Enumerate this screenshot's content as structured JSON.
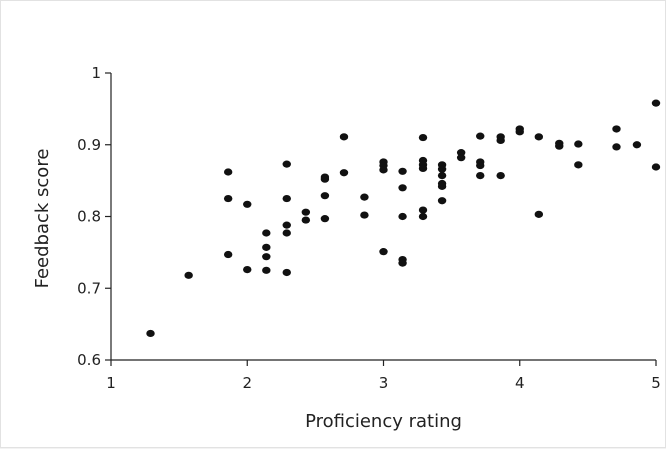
{
  "chart_data": {
    "type": "scatter",
    "title": "",
    "xlabel": "Proficiency rating",
    "ylabel": "Feedback score",
    "xlim": [
      1,
      5
    ],
    "ylim": [
      0.6,
      1.0
    ],
    "x_ticks": [
      1,
      2,
      3,
      4,
      5
    ],
    "y_ticks": [
      0.6,
      0.7,
      0.8,
      0.9,
      1.0
    ],
    "x_tick_labels": [
      "1",
      "2",
      "3",
      "4",
      "5"
    ],
    "y_tick_labels": [
      "0.6",
      "0.7",
      "0.8",
      "0.9",
      "1"
    ],
    "grid": false,
    "marker_color": "#111111",
    "series": [
      {
        "name": "",
        "points": [
          [
            1.29,
            0.637
          ],
          [
            1.57,
            0.718
          ],
          [
            1.86,
            0.862
          ],
          [
            1.86,
            0.825
          ],
          [
            1.86,
            0.747
          ],
          [
            2.0,
            0.817
          ],
          [
            2.0,
            0.726
          ],
          [
            2.14,
            0.777
          ],
          [
            2.14,
            0.757
          ],
          [
            2.14,
            0.744
          ],
          [
            2.14,
            0.725
          ],
          [
            2.29,
            0.873
          ],
          [
            2.29,
            0.825
          ],
          [
            2.29,
            0.788
          ],
          [
            2.29,
            0.777
          ],
          [
            2.29,
            0.722
          ],
          [
            2.43,
            0.806
          ],
          [
            2.43,
            0.795
          ],
          [
            2.57,
            0.855
          ],
          [
            2.57,
            0.852
          ],
          [
            2.57,
            0.829
          ],
          [
            2.57,
            0.797
          ],
          [
            2.71,
            0.911
          ],
          [
            2.71,
            0.861
          ],
          [
            2.86,
            0.827
          ],
          [
            2.86,
            0.802
          ],
          [
            3.0,
            0.876
          ],
          [
            3.0,
            0.871
          ],
          [
            3.0,
            0.865
          ],
          [
            3.0,
            0.751
          ],
          [
            3.14,
            0.863
          ],
          [
            3.14,
            0.84
          ],
          [
            3.14,
            0.8
          ],
          [
            3.14,
            0.74
          ],
          [
            3.14,
            0.735
          ],
          [
            3.29,
            0.91
          ],
          [
            3.29,
            0.878
          ],
          [
            3.29,
            0.872
          ],
          [
            3.29,
            0.867
          ],
          [
            3.29,
            0.809
          ],
          [
            3.29,
            0.8
          ],
          [
            3.43,
            0.872
          ],
          [
            3.43,
            0.866
          ],
          [
            3.43,
            0.857
          ],
          [
            3.43,
            0.846
          ],
          [
            3.43,
            0.842
          ],
          [
            3.43,
            0.822
          ],
          [
            3.57,
            0.889
          ],
          [
            3.57,
            0.882
          ],
          [
            3.71,
            0.912
          ],
          [
            3.71,
            0.876
          ],
          [
            3.71,
            0.871
          ],
          [
            3.71,
            0.857
          ],
          [
            3.86,
            0.911
          ],
          [
            3.86,
            0.906
          ],
          [
            3.86,
            0.857
          ],
          [
            4.0,
            0.922
          ],
          [
            4.0,
            0.918
          ],
          [
            4.14,
            0.911
          ],
          [
            4.14,
            0.803
          ],
          [
            4.29,
            0.902
          ],
          [
            4.29,
            0.898
          ],
          [
            4.43,
            0.901
          ],
          [
            4.43,
            0.872
          ],
          [
            4.71,
            0.922
          ],
          [
            4.71,
            0.897
          ],
          [
            4.86,
            0.9
          ],
          [
            5.0,
            0.958
          ],
          [
            5.0,
            0.869
          ]
        ]
      }
    ]
  }
}
